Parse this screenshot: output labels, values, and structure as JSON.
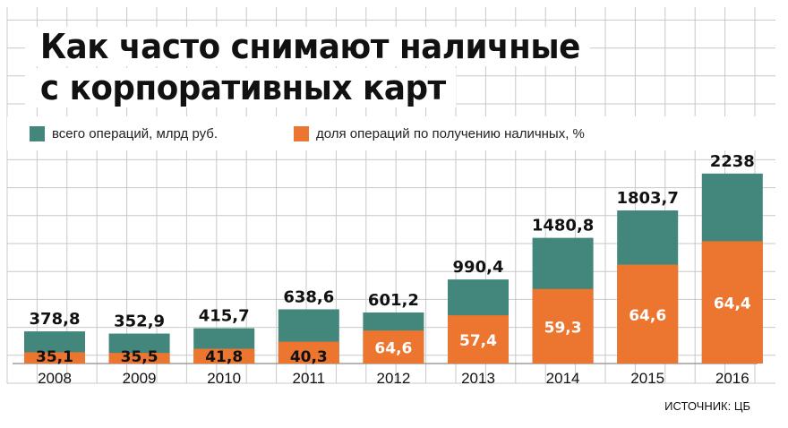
{
  "title_lines": [
    "Как часто снимают наличные",
    "с корпоративных карт"
  ],
  "source": "ИСТОЧНИК: ЦБ",
  "colors": {
    "total": "#43877c",
    "share": "#ec7630",
    "grid": "#c9c9c9",
    "background": "#ffffff"
  },
  "chart_data": {
    "type": "bar",
    "categories": [
      "2008",
      "2009",
      "2010",
      "2011",
      "2012",
      "2013",
      "2014",
      "2015",
      "2016"
    ],
    "series": [
      {
        "name": "всего операций, млрд руб.",
        "values": [
          378.8,
          352.9,
          415.7,
          638.6,
          601.2,
          990.4,
          1480.8,
          1803.7,
          2238
        ],
        "labels": [
          "378,8",
          "352,9",
          "415,7",
          "638,6",
          "601,2",
          "990,4",
          "1480,8",
          "1803,7",
          "2238"
        ],
        "color": "#43877c"
      },
      {
        "name": "доля операций по получению наличных, %",
        "values": [
          35.1,
          35.5,
          41.8,
          40.3,
          64.6,
          57.4,
          59.3,
          64.6,
          64.4
        ],
        "labels": [
          "35,1",
          "35,5",
          "41,8",
          "40,3",
          "64,6",
          "57,4",
          "59,3",
          "64,6",
          "64,4"
        ],
        "color": "#ec7630"
      }
    ],
    "legend": "top-left",
    "grid": true
  }
}
